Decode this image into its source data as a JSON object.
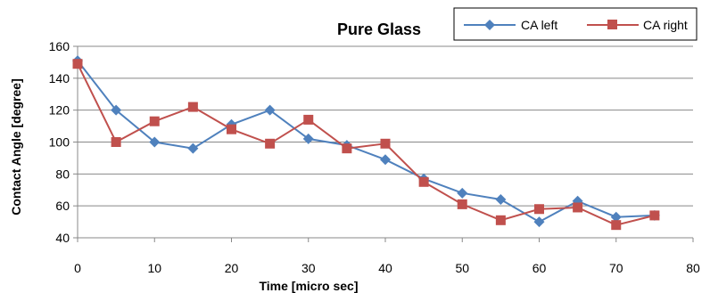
{
  "chart_data": {
    "type": "line",
    "title": "Pure Glass",
    "xlabel": "Time [micro sec]",
    "ylabel": "Contact Angle [degree]",
    "xlim": [
      0,
      80
    ],
    "ylim": [
      40,
      160
    ],
    "xticks": [
      0,
      10,
      20,
      30,
      40,
      50,
      60,
      70,
      80
    ],
    "yticks": [
      40,
      60,
      80,
      100,
      120,
      140,
      160
    ],
    "grid": "horizontal",
    "legend_position": "top-right",
    "x": [
      0,
      5,
      10,
      15,
      20,
      25,
      30,
      35,
      40,
      45,
      50,
      55,
      60,
      65,
      70,
      75
    ],
    "series": [
      {
        "name": "CA left",
        "color": "#4F81BD",
        "marker": "diamond",
        "values": [
          151,
          120,
          100,
          96,
          111,
          120,
          102,
          98,
          89,
          77,
          68,
          64,
          50,
          63,
          53,
          54
        ]
      },
      {
        "name": "CA right",
        "color": "#C0504D",
        "marker": "square",
        "values": [
          149,
          100,
          113,
          122,
          108,
          99,
          114,
          96,
          99,
          75,
          61,
          51,
          58,
          59,
          48,
          54
        ]
      }
    ]
  }
}
